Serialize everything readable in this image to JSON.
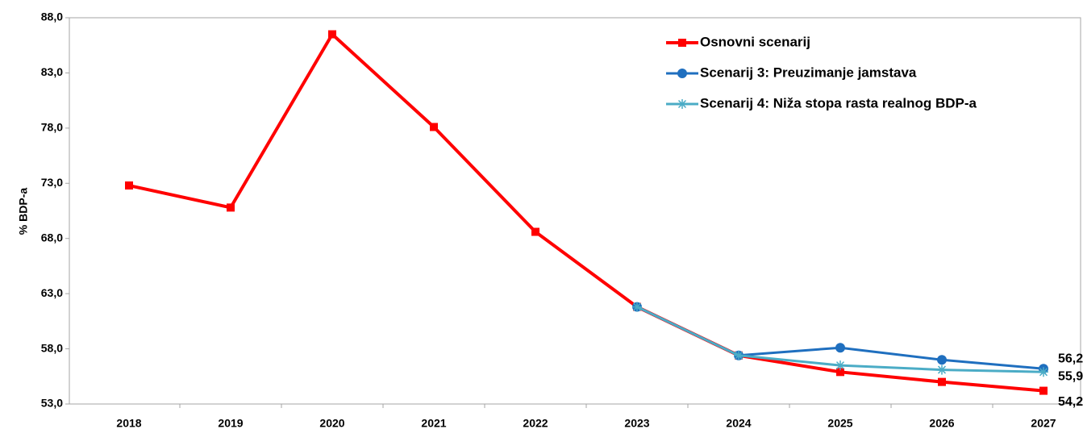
{
  "chart_data": {
    "type": "line",
    "y_label": "% BDP-a",
    "categories": [
      "2018",
      "2019",
      "2020",
      "2021",
      "2022",
      "2023",
      "2024",
      "2025",
      "2026",
      "2027"
    ],
    "series": [
      {
        "name": "Osnovni scenarij",
        "color": "#ff0000",
        "marker": "square",
        "values": [
          72.8,
          70.8,
          86.5,
          78.1,
          68.6,
          61.8,
          57.4,
          55.9,
          55.0,
          54.2
        ],
        "value_labels": [
          null,
          null,
          null,
          null,
          null,
          null,
          null,
          null,
          null,
          "54,2"
        ]
      },
      {
        "name": "Scenarij 3: Preuzimanje jamstava",
        "color": "#1f6fbf",
        "marker": "circle",
        "label_color": "#1f3864",
        "values": [
          null,
          null,
          null,
          null,
          null,
          61.8,
          57.4,
          58.1,
          57.0,
          56.2
        ],
        "value_labels": [
          null,
          null,
          null,
          null,
          null,
          null,
          null,
          null,
          null,
          "56,2"
        ]
      },
      {
        "name": "Scenarij 4: Niža stopa rasta realnog BDP-a",
        "color": "#4bacc6",
        "marker": "asterisk",
        "label_color": "#31849b",
        "values": [
          null,
          null,
          null,
          null,
          null,
          61.8,
          57.4,
          56.5,
          56.1,
          55.9
        ],
        "value_labels": [
          null,
          null,
          null,
          null,
          null,
          null,
          null,
          null,
          null,
          "55,9"
        ]
      }
    ],
    "ylim": [
      53,
      88
    ],
    "yticks": [
      {
        "value": 53,
        "label": "53,0"
      },
      {
        "value": 58,
        "label": "58,0"
      },
      {
        "value": 63,
        "label": "63,0"
      },
      {
        "value": 68,
        "label": "68,0"
      },
      {
        "value": 73,
        "label": "73,0"
      },
      {
        "value": 78,
        "label": "78,0"
      },
      {
        "value": 83,
        "label": "83,0"
      },
      {
        "value": 88,
        "label": "88,0"
      }
    ],
    "grid": false,
    "legend": "top-right"
  }
}
